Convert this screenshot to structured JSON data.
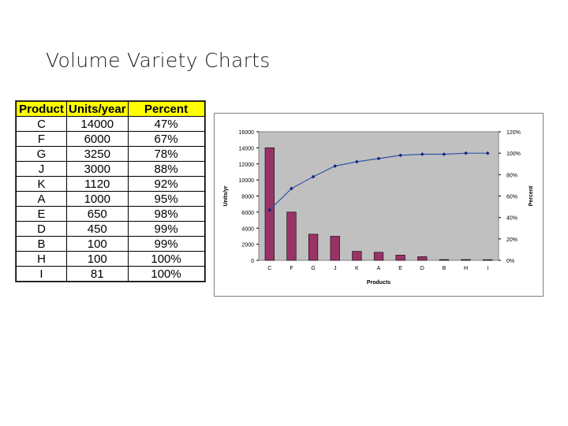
{
  "title": "Volume Variety Charts",
  "table": {
    "headers": [
      "Product",
      "Units/year",
      "Percent"
    ],
    "rows": [
      [
        "C",
        "14000",
        "47%"
      ],
      [
        "F",
        "6000",
        "67%"
      ],
      [
        "G",
        "3250",
        "78%"
      ],
      [
        "J",
        "3000",
        "88%"
      ],
      [
        "K",
        "1120",
        "92%"
      ],
      [
        "A",
        "1000",
        "95%"
      ],
      [
        "E",
        "650",
        "98%"
      ],
      [
        "D",
        "450",
        "99%"
      ],
      [
        "B",
        "100",
        "99%"
      ],
      [
        "H",
        "100",
        "100%"
      ],
      [
        "I",
        "81",
        "100%"
      ]
    ],
    "header_color": "#ffff00"
  },
  "chart_data": {
    "type": "bar",
    "categories": [
      "C",
      "F",
      "G",
      "J",
      "K",
      "A",
      "E",
      "D",
      "B",
      "H",
      "I"
    ],
    "series": [
      {
        "name": "",
        "type": "bar",
        "axis": "left",
        "color": "#993366",
        "values": [
          14000,
          6000,
          3250,
          3000,
          1120,
          1000,
          650,
          450,
          100,
          100,
          81
        ]
      },
      {
        "name": "",
        "type": "line",
        "axis": "right",
        "color": "#3355aa",
        "values": [
          0.47,
          0.67,
          0.78,
          0.88,
          0.92,
          0.95,
          0.98,
          0.99,
          0.99,
          1.0,
          1.0
        ]
      }
    ],
    "xlabel": "Products",
    "ylabel": "Units/yr",
    "y2label": "Percent",
    "ylim": [
      0,
      16000
    ],
    "y2lim": [
      0,
      1.2
    ],
    "yticks": [
      "0",
      "2000",
      "4000",
      "6000",
      "8000",
      "10000",
      "12000",
      "14000",
      "16000"
    ],
    "y2ticks": [
      "0%",
      "20%",
      "40%",
      "60%",
      "80%",
      "100%",
      "120%"
    ],
    "plot_background": "#c0c0c0",
    "grid": false,
    "legend": "none"
  }
}
